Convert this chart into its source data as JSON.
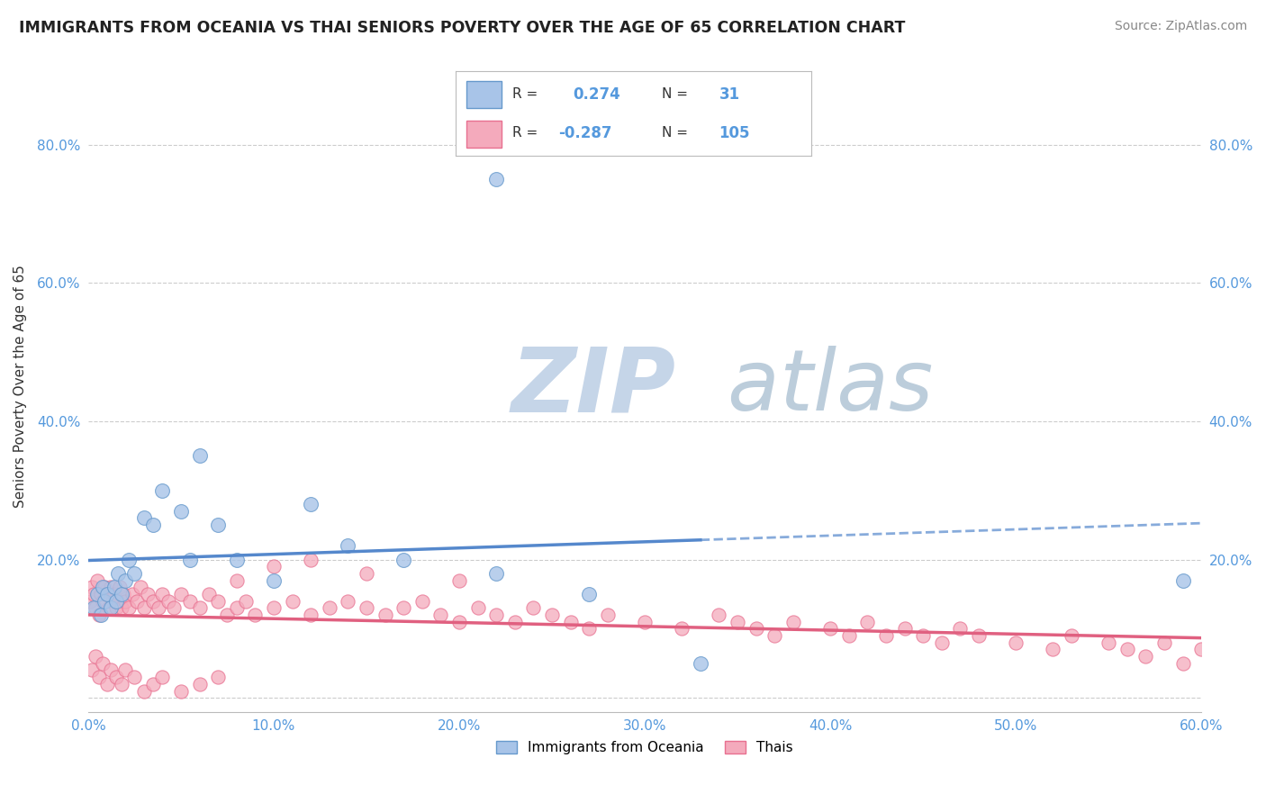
{
  "title": "IMMIGRANTS FROM OCEANIA VS THAI SENIORS POVERTY OVER THE AGE OF 65 CORRELATION CHART",
  "source": "Source: ZipAtlas.com",
  "ylabel": "Seniors Poverty Over the Age of 65",
  "xlim": [
    0.0,
    0.6
  ],
  "ylim": [
    -0.02,
    0.92
  ],
  "x_ticks": [
    0.0,
    0.1,
    0.2,
    0.3,
    0.4,
    0.5,
    0.6
  ],
  "x_tick_labels": [
    "0.0%",
    "10.0%",
    "20.0%",
    "30.0%",
    "40.0%",
    "50.0%",
    "60.0%"
  ],
  "y_ticks": [
    0.0,
    0.2,
    0.4,
    0.6,
    0.8
  ],
  "y_tick_labels": [
    "",
    "20.0%",
    "40.0%",
    "60.0%",
    "80.0%"
  ],
  "legend_r_blue": "0.274",
  "legend_n_blue": "31",
  "legend_r_pink": "-0.287",
  "legend_n_pink": "105",
  "legend_labels": [
    "Immigrants from Oceania",
    "Thais"
  ],
  "blue_fill": "#a8c4e8",
  "pink_fill": "#f4aabc",
  "blue_edge": "#6699cc",
  "pink_edge": "#e87090",
  "blue_line": "#5588cc",
  "pink_line": "#e06080",
  "tick_color": "#5599dd",
  "watermark_zip": "ZIP",
  "watermark_atlas": "atlas",
  "watermark_color": "#ccd8e8",
  "blue_scatter_x": [
    0.003,
    0.005,
    0.007,
    0.008,
    0.009,
    0.01,
    0.012,
    0.014,
    0.015,
    0.016,
    0.018,
    0.02,
    0.022,
    0.025,
    0.03,
    0.035,
    0.04,
    0.05,
    0.055,
    0.06,
    0.07,
    0.08,
    0.1,
    0.12,
    0.14,
    0.17,
    0.22,
    0.27,
    0.33,
    0.59,
    0.22
  ],
  "blue_scatter_y": [
    0.13,
    0.15,
    0.12,
    0.16,
    0.14,
    0.15,
    0.13,
    0.16,
    0.14,
    0.18,
    0.15,
    0.17,
    0.2,
    0.18,
    0.26,
    0.25,
    0.3,
    0.27,
    0.2,
    0.35,
    0.25,
    0.2,
    0.17,
    0.28,
    0.22,
    0.2,
    0.18,
    0.15,
    0.05,
    0.17,
    0.75
  ],
  "pink_scatter_x": [
    0.001,
    0.002,
    0.003,
    0.004,
    0.005,
    0.006,
    0.007,
    0.008,
    0.009,
    0.01,
    0.011,
    0.012,
    0.013,
    0.014,
    0.015,
    0.016,
    0.017,
    0.018,
    0.019,
    0.02,
    0.022,
    0.024,
    0.026,
    0.028,
    0.03,
    0.032,
    0.035,
    0.038,
    0.04,
    0.043,
    0.046,
    0.05,
    0.055,
    0.06,
    0.065,
    0.07,
    0.075,
    0.08,
    0.085,
    0.09,
    0.1,
    0.11,
    0.12,
    0.13,
    0.14,
    0.15,
    0.16,
    0.17,
    0.18,
    0.19,
    0.2,
    0.21,
    0.22,
    0.23,
    0.24,
    0.25,
    0.26,
    0.27,
    0.28,
    0.3,
    0.32,
    0.34,
    0.35,
    0.36,
    0.37,
    0.38,
    0.4,
    0.41,
    0.42,
    0.43,
    0.44,
    0.45,
    0.46,
    0.47,
    0.48,
    0.5,
    0.52,
    0.53,
    0.55,
    0.56,
    0.57,
    0.58,
    0.59,
    0.6,
    0.002,
    0.004,
    0.006,
    0.008,
    0.01,
    0.012,
    0.015,
    0.018,
    0.02,
    0.025,
    0.03,
    0.035,
    0.04,
    0.05,
    0.06,
    0.07,
    0.08,
    0.1,
    0.12,
    0.15,
    0.2
  ],
  "pink_scatter_y": [
    0.14,
    0.16,
    0.15,
    0.13,
    0.17,
    0.12,
    0.15,
    0.14,
    0.16,
    0.15,
    0.13,
    0.16,
    0.14,
    0.15,
    0.13,
    0.14,
    0.16,
    0.13,
    0.15,
    0.14,
    0.13,
    0.15,
    0.14,
    0.16,
    0.13,
    0.15,
    0.14,
    0.13,
    0.15,
    0.14,
    0.13,
    0.15,
    0.14,
    0.13,
    0.15,
    0.14,
    0.12,
    0.13,
    0.14,
    0.12,
    0.13,
    0.14,
    0.12,
    0.13,
    0.14,
    0.13,
    0.12,
    0.13,
    0.14,
    0.12,
    0.11,
    0.13,
    0.12,
    0.11,
    0.13,
    0.12,
    0.11,
    0.1,
    0.12,
    0.11,
    0.1,
    0.12,
    0.11,
    0.1,
    0.09,
    0.11,
    0.1,
    0.09,
    0.11,
    0.09,
    0.1,
    0.09,
    0.08,
    0.1,
    0.09,
    0.08,
    0.07,
    0.09,
    0.08,
    0.07,
    0.06,
    0.08,
    0.05,
    0.07,
    0.04,
    0.06,
    0.03,
    0.05,
    0.02,
    0.04,
    0.03,
    0.02,
    0.04,
    0.03,
    0.01,
    0.02,
    0.03,
    0.01,
    0.02,
    0.03,
    0.17,
    0.19,
    0.2,
    0.18,
    0.17
  ]
}
